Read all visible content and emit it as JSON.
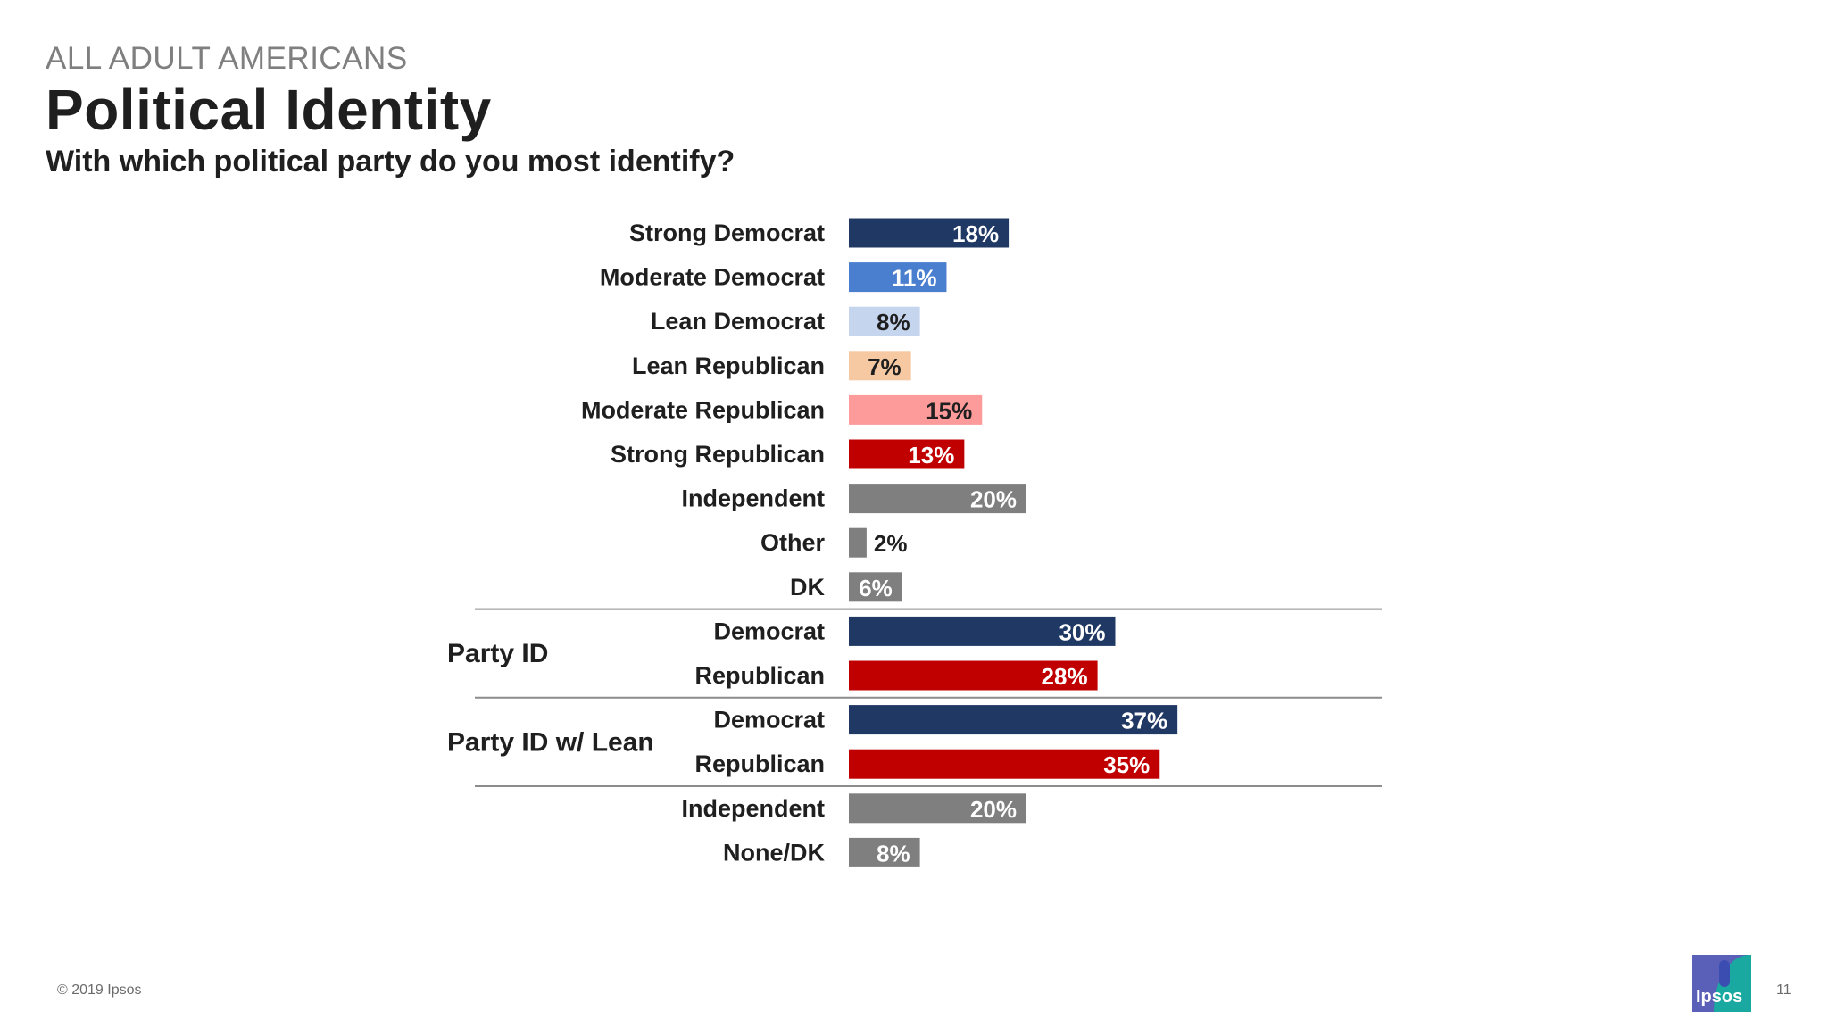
{
  "header": {
    "eyebrow": "ALL ADULT AMERICANS",
    "title": "Political Identity",
    "subtitle": "With which political party do you most identify?"
  },
  "footer": {
    "copyright": "© 2019 Ipsos",
    "page_number": "11",
    "logo_text": "Ipsos"
  },
  "chart_data": {
    "type": "bar",
    "orientation": "horizontal",
    "unit": "%",
    "xlim": [
      0,
      100
    ],
    "rows": [
      {
        "label": "Strong Democrat",
        "value": 18,
        "color": "#1f3864",
        "label_color": "#ffffff"
      },
      {
        "label": "Moderate Democrat",
        "value": 11,
        "color": "#4a7fd0",
        "label_color": "#ffffff"
      },
      {
        "label": "Lean Democrat",
        "value": 8,
        "color": "#c5d5ee",
        "label_color": "#1f1f1f"
      },
      {
        "label": "Lean Republican",
        "value": 7,
        "color": "#f6c9a3",
        "label_color": "#1f1f1f"
      },
      {
        "label": "Moderate Republican",
        "value": 15,
        "color": "#fd9a9a",
        "label_color": "#1f1f1f"
      },
      {
        "label": "Strong Republican",
        "value": 13,
        "color": "#c00000",
        "label_color": "#ffffff"
      },
      {
        "label": "Independent",
        "value": 20,
        "color": "#7f7f7f",
        "label_color": "#ffffff"
      },
      {
        "label": "Other",
        "value": 2,
        "color": "#7f7f7f",
        "label_color": "#1f1f1f",
        "label_outside": true
      },
      {
        "label": "DK",
        "value": 6,
        "color": "#7f7f7f",
        "label_color": "#ffffff"
      },
      {
        "label": "Democrat",
        "value": 30,
        "color": "#1f3864",
        "label_color": "#ffffff",
        "separator_before": true
      },
      {
        "label": "Republican",
        "value": 28,
        "color": "#c00000",
        "label_color": "#ffffff"
      },
      {
        "label": "Democrat",
        "value": 37,
        "color": "#1f3864",
        "label_color": "#ffffff",
        "separator_before": true
      },
      {
        "label": "Republican",
        "value": 35,
        "color": "#c00000",
        "label_color": "#ffffff"
      },
      {
        "label": "Independent",
        "value": 20,
        "color": "#7f7f7f",
        "label_color": "#ffffff",
        "separator_before": true
      },
      {
        "label": "None/DK",
        "value": 8,
        "color": "#7f7f7f",
        "label_color": "#ffffff"
      }
    ],
    "groups": [
      {
        "label": "Party ID",
        "rows": [
          9,
          10
        ]
      },
      {
        "label": "Party ID w/ Lean",
        "rows": [
          11,
          12
        ]
      }
    ]
  }
}
